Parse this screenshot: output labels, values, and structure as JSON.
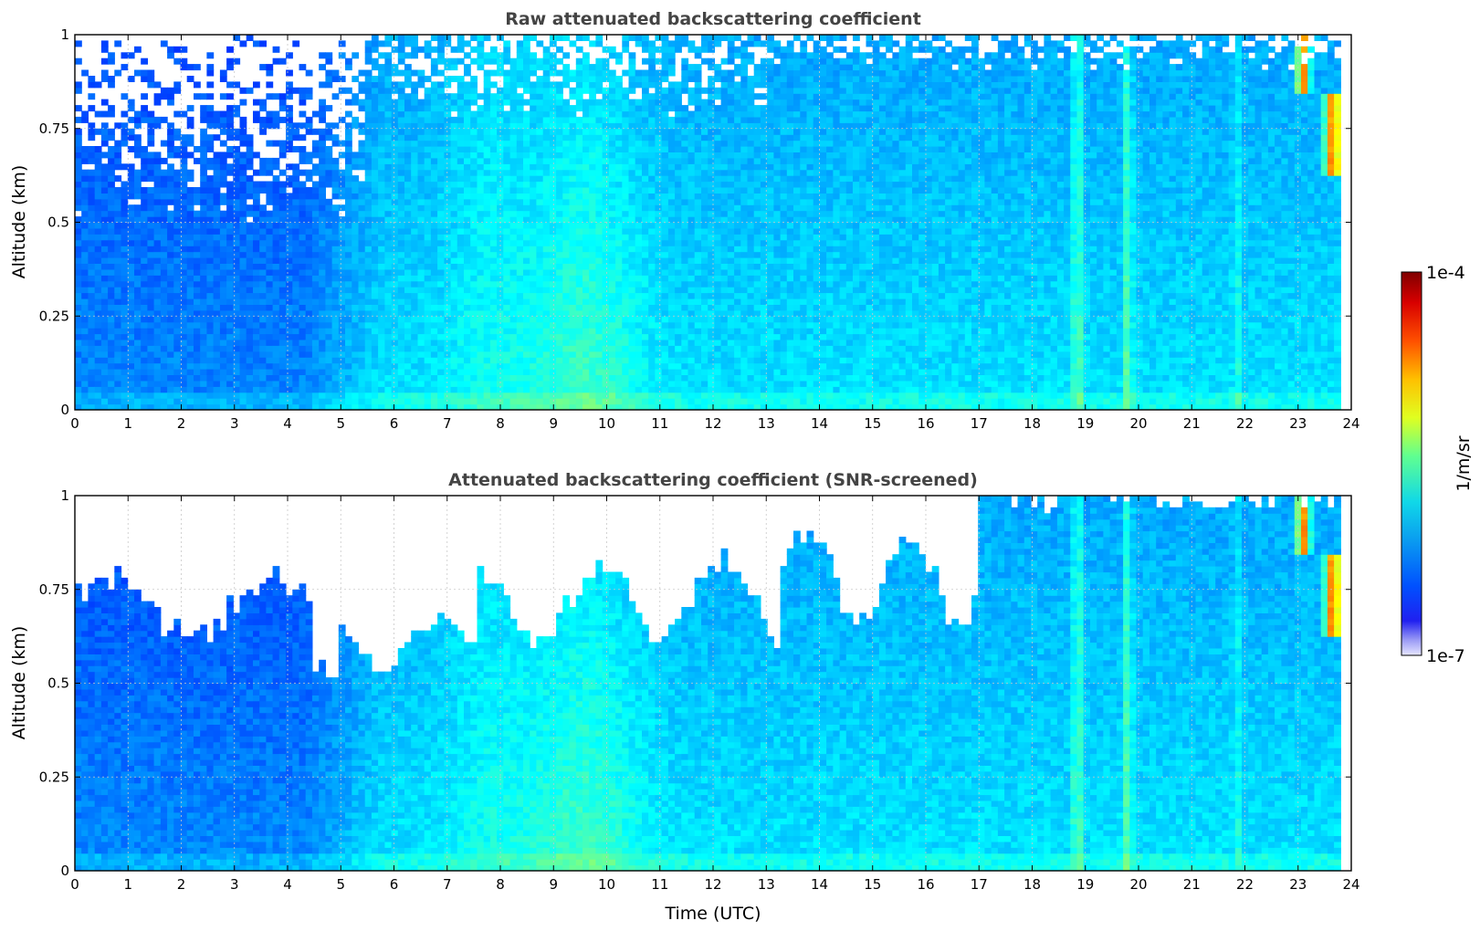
{
  "chart_data": [
    {
      "type": "heatmap",
      "title": "Raw attenuated backscattering coefficient",
      "xlabel": "",
      "ylabel": "Altitude (km)",
      "xlim": [
        0,
        24
      ],
      "ylim": [
        0,
        1
      ],
      "x_ticks": [
        "0",
        "1",
        "2",
        "3",
        "4",
        "5",
        "6",
        "7",
        "8",
        "9",
        "10",
        "11",
        "12",
        "13",
        "14",
        "15",
        "16",
        "17",
        "18",
        "19",
        "20",
        "21",
        "22",
        "23",
        "24"
      ],
      "y_ticks": [
        "0",
        "0.25",
        "0.5",
        "0.75",
        "1"
      ],
      "data_end_time": 23.8,
      "grid": true,
      "screened": false,
      "features": [
        {
          "time": 9.5,
          "description": "broad enhanced backscatter plume 9-10.5 UTC"
        },
        {
          "time": 18.85,
          "description": "narrow vertical enhanced column"
        },
        {
          "time": 19.8,
          "description": "narrow vertical enhanced column"
        },
        {
          "time": 23.5,
          "description": "high backscatter cloud 0.6-1 km"
        }
      ]
    },
    {
      "type": "heatmap",
      "title": "Attenuated backscattering coefficient (SNR-screened)",
      "xlabel": "Time (UTC)",
      "ylabel": "Altitude (km)",
      "xlim": [
        0,
        24
      ],
      "ylim": [
        0,
        1
      ],
      "x_ticks": [
        "0",
        "1",
        "2",
        "3",
        "4",
        "5",
        "6",
        "7",
        "8",
        "9",
        "10",
        "11",
        "12",
        "13",
        "14",
        "15",
        "16",
        "17",
        "18",
        "19",
        "20",
        "21",
        "22",
        "23",
        "24"
      ],
      "y_ticks": [
        "0",
        "0.25",
        "0.5",
        "0.75",
        "1"
      ],
      "data_end_time": 23.8,
      "grid": true,
      "screened": true
    }
  ],
  "colorbar": {
    "label": "1/m/sr",
    "min_label": "1e-7",
    "max_label": "1e-4",
    "scale": "log",
    "min": 1e-07,
    "max": 0.0001,
    "colormap": "jet"
  }
}
